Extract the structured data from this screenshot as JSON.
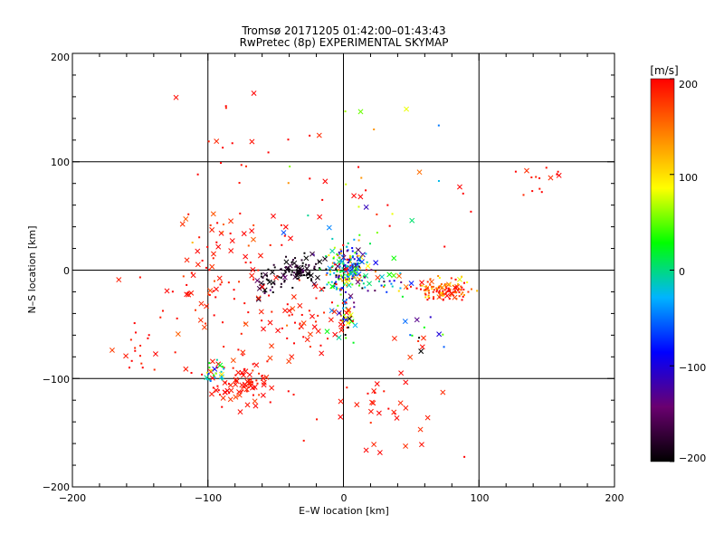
{
  "chart_data": {
    "type": "scatter",
    "title": "Tromsø 20171205 01:42:00–01:43:43",
    "subtitle": "RwPretec (8p) EXPERIMENTAL SKYMAP",
    "xlabel": "E–W location [km]",
    "ylabel": "N–S location [km]",
    "xlim": [
      -200,
      200
    ],
    "ylim": [
      -200,
      200
    ],
    "xticks": [
      "−200",
      "−100",
      "0",
      "100",
      "200"
    ],
    "yticks": [
      "−200",
      "−100",
      "0",
      "100",
      "200"
    ],
    "grid": true,
    "colorbar": {
      "label": "[m/s]",
      "range": [
        -200,
        200
      ],
      "ticks": [
        "200",
        "100",
        "0",
        "−100",
        "−200"
      ],
      "colors": [
        "#000000",
        "#6a0070",
        "#0000ff",
        "#00b4ff",
        "#00ff00",
        "#ffff00",
        "#ff8000",
        "#ff0000"
      ]
    },
    "markers": [
      "dot",
      "x"
    ],
    "clusters": [
      {
        "x": -32,
        "y": 0,
        "sx": 9,
        "sy": 5,
        "n": 90,
        "v": -190,
        "vs": 20,
        "xs": 0.2
      },
      {
        "x": -55,
        "y": -12,
        "sx": 7,
        "sy": 6,
        "n": 30,
        "v": -185,
        "vs": 25,
        "xs": 0.3
      },
      {
        "x": 0,
        "y": 0,
        "sx": 7,
        "sy": 12,
        "n": 180,
        "v": 0,
        "vs": 110,
        "xs": 0.15
      },
      {
        "x": 8,
        "y": 5,
        "sx": 5,
        "sy": 6,
        "n": 40,
        "v": -60,
        "vs": 70,
        "xs": 0.2
      },
      {
        "x": 0,
        "y": -45,
        "sx": 4,
        "sy": 10,
        "n": 45,
        "v": 30,
        "vs": 150,
        "xs": 0.2
      },
      {
        "x": 30,
        "y": -10,
        "sx": 10,
        "sy": 8,
        "n": 30,
        "v": -30,
        "vs": 110,
        "xs": 0.25
      },
      {
        "x": 75,
        "y": -18,
        "sx": 11,
        "sy": 5,
        "n": 130,
        "v": 170,
        "vs": 45,
        "xs": 0.12
      },
      {
        "x": -75,
        "y": -105,
        "sx": 14,
        "sy": 12,
        "n": 90,
        "v": 195,
        "vs": 12,
        "xs": 0.5
      },
      {
        "x": -95,
        "y": -95,
        "sx": 4,
        "sy": 5,
        "n": 25,
        "v": 20,
        "vs": 60,
        "xs": 0.3
      },
      {
        "x": -95,
        "y": -25,
        "sx": 28,
        "sy": 25,
        "n": 70,
        "v": 195,
        "vs": 12,
        "xs": 0.4
      },
      {
        "x": -35,
        "y": -45,
        "sx": 22,
        "sy": 18,
        "n": 55,
        "v": 190,
        "vs": 18,
        "xs": 0.45
      },
      {
        "x": -80,
        "y": 35,
        "sx": 20,
        "sy": 12,
        "n": 30,
        "v": 190,
        "vs": 30,
        "xs": 0.45
      },
      {
        "x": 30,
        "y": -140,
        "sx": 30,
        "sy": 25,
        "n": 35,
        "v": 195,
        "vs": 10,
        "xs": 0.6
      },
      {
        "x": 20,
        "y": 70,
        "sx": 40,
        "sy": 35,
        "n": 35,
        "v": 120,
        "vs": 120,
        "xs": 0.35
      },
      {
        "x": 145,
        "y": 85,
        "sx": 8,
        "sy": 8,
        "n": 14,
        "v": 195,
        "vs": 10,
        "xs": 0.2
      },
      {
        "x": -65,
        "y": 115,
        "sx": 35,
        "sy": 25,
        "n": 18,
        "v": 195,
        "vs": 10,
        "xs": 0.3
      },
      {
        "x": -150,
        "y": -70,
        "sx": 12,
        "sy": 10,
        "n": 16,
        "v": 195,
        "vs": 12,
        "xs": 0.3
      },
      {
        "x": 60,
        "y": -60,
        "sx": 10,
        "sy": 10,
        "n": 14,
        "v": -20,
        "vs": 120,
        "xs": 0.4
      }
    ]
  }
}
